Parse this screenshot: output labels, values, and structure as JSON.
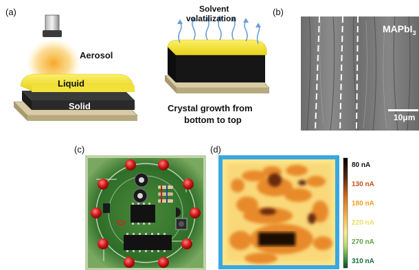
{
  "panels": {
    "a": {
      "label": "(a)",
      "aerosol": "Aerosol",
      "liquid": "Liquid",
      "solid": "Solid",
      "solvent_line1": "Solvent",
      "solvent_line2": "volatilization",
      "growth_line1": "Crystal growth from",
      "growth_line2": "bottom to top"
    },
    "b": {
      "label": "(b)",
      "material": "MAPbI",
      "material_sub": "3",
      "scalebar": "10μm"
    },
    "c": {
      "label": "(c)"
    },
    "d": {
      "label": "(d)",
      "colorbar": [
        {
          "text": "80 nA",
          "color": "#111111"
        },
        {
          "text": "130 nA",
          "color": "#c0501a"
        },
        {
          "text": "180 nA",
          "color": "#f0a020"
        },
        {
          "text": "220 nA",
          "color": "#e8e060"
        },
        {
          "text": "270 nA",
          "color": "#5aa040"
        },
        {
          "text": "310 nA",
          "color": "#1a6a3a"
        }
      ],
      "colors": {
        "low": "#3a1a0a",
        "mid": "#e07a20",
        "light": "#f8c860",
        "bg": "#fbe68a",
        "edge": "#3aa8e0"
      }
    }
  }
}
